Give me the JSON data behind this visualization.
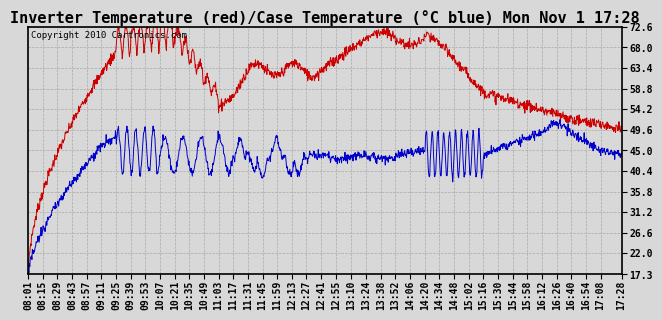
{
  "title": "Inverter Temperature (red)/Case Temperature (°C blue) Mon Nov 1 17:28",
  "copyright": "Copyright 2010 Cartronics.com",
  "y_ticks": [
    17.3,
    22.0,
    26.6,
    31.2,
    35.8,
    40.4,
    45.0,
    49.6,
    54.2,
    58.8,
    63.4,
    68.0,
    72.6
  ],
  "y_min": 17.3,
  "y_max": 72.6,
  "x_labels": [
    "08:01",
    "08:15",
    "08:29",
    "08:43",
    "08:57",
    "09:11",
    "09:25",
    "09:39",
    "09:53",
    "10:07",
    "10:21",
    "10:35",
    "10:49",
    "11:03",
    "11:17",
    "11:31",
    "11:45",
    "11:59",
    "12:13",
    "12:27",
    "12:41",
    "12:55",
    "13:10",
    "13:24",
    "13:38",
    "13:52",
    "14:06",
    "14:20",
    "14:34",
    "14:48",
    "15:02",
    "15:16",
    "15:30",
    "15:44",
    "15:58",
    "16:12",
    "16:26",
    "16:40",
    "16:54",
    "17:08",
    "17:28"
  ],
  "red_color": "#cc0000",
  "blue_color": "#0000cc",
  "bg_color": "#d8d8d8",
  "grid_color": "#aaaaaa",
  "title_fontsize": 11,
  "copyright_fontsize": 6.5,
  "tick_fontsize": 7
}
